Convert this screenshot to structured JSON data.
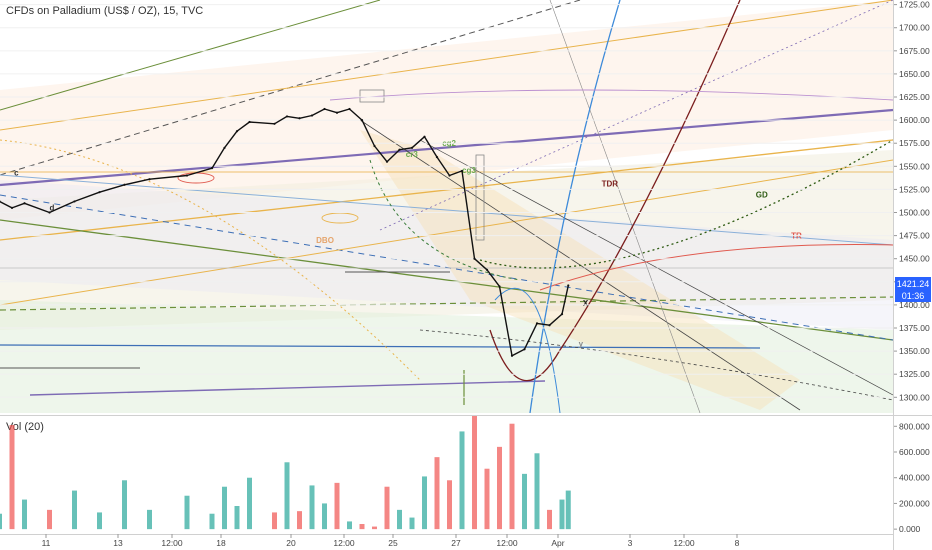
{
  "header": {
    "symbol_title": "CFDs on Palladium (US$ / OZ), 15, TVC"
  },
  "volume_label": "Vol (20)",
  "price_badges": {
    "last_price": "1421.24",
    "countdown": "01:36",
    "color": "#2962ff"
  },
  "annotations": [
    {
      "text": "TDR",
      "color": "#7b1e1e",
      "x": "Apr 2 14:00",
      "y": 1528
    },
    {
      "text": "GD",
      "color": "#2e5b13",
      "x": "Apr 8 18:00",
      "y": 1516
    },
    {
      "text": "TR",
      "color": "#e05a4f",
      "x": "Apr 10 04:00",
      "y": 1472
    },
    {
      "text": "DBO",
      "color": "#e5a46b",
      "x": "Mar 22 04:00",
      "y": 1467
    },
    {
      "text": "cg2",
      "color": "#6aa84f",
      "x": "Mar 27 05:00",
      "y": 1572
    },
    {
      "text": "cg3",
      "color": "#6aa84f",
      "x": "Mar 28 00:00",
      "y": 1543
    },
    {
      "text": "cr3",
      "color": "#6aa84f",
      "x": "Mar 25 18:00",
      "y": 1560
    },
    {
      "text": "X",
      "color": "#222222",
      "x": "Apr 1 20:00",
      "y": 1399
    },
    {
      "text": "y",
      "color": "#888888",
      "x": "Apr 1 16:00",
      "y": 1355
    },
    {
      "text": "c",
      "color": "#333333",
      "x": "Mar 10 02:00",
      "y": 1540
    },
    {
      "text": "d",
      "color": "#333333",
      "x": "Mar 11 12:00",
      "y": 1502
    }
  ],
  "chart_data": [
    {
      "type": "line",
      "name": "price",
      "xlabel": "",
      "ylabel": "",
      "x_ticks": [
        "11",
        "13",
        "12:00",
        "18",
        "20",
        "12:00",
        "25",
        "27",
        "12:00",
        "Apr",
        "3",
        "12:00",
        "8"
      ],
      "y_ticks": [
        1300,
        1325,
        1350,
        1375,
        1400,
        1425,
        1450,
        1475,
        1500,
        1525,
        1550,
        1575,
        1600,
        1625,
        1650,
        1675,
        1700,
        1725
      ],
      "ylim": [
        1283,
        1730
      ],
      "x": [
        "Mar 9 12:00",
        "Mar 10 00:00",
        "Mar 10 12:00",
        "Mar 11 12:00",
        "Mar 12 12:00",
        "Mar 13 12:00",
        "Mar 14 12:00",
        "Mar 15 12:00",
        "Mar 17 00:00",
        "Mar 18 00:00",
        "Mar 18 12:00",
        "Mar 19 00:00",
        "Mar 19 12:00",
        "Mar 20 12:00",
        "Mar 21 00:00",
        "Mar 21 12:00",
        "Mar 22 00:00",
        "Mar 22 12:00",
        "Mar 23 00:00",
        "Mar 23 12:00",
        "Mar 24 00:00",
        "Mar 24 12:00",
        "Mar 25 00:00",
        "Mar 25 12:00",
        "Mar 26 00:00",
        "Mar 26 12:00",
        "Mar 27 00:00",
        "Mar 27 12:00",
        "Mar 28 00:00",
        "Mar 28 12:00",
        "Mar 29 00:00",
        "Mar 29 12:00",
        "Mar 30 00:00",
        "Mar 30 12:00",
        "Mar 31 00:00",
        "Mar 31 12:00",
        "Apr 1 00:00",
        "Apr 1 06:00"
      ],
      "values": [
        1512,
        1505,
        1510,
        1500,
        1512,
        1522,
        1530,
        1536,
        1540,
        1548,
        1570,
        1588,
        1598,
        1596,
        1604,
        1602,
        1605,
        1612,
        1608,
        1612,
        1600,
        1572,
        1555,
        1568,
        1570,
        1582,
        1560,
        1540,
        1545,
        1450,
        1438,
        1420,
        1345,
        1352,
        1380,
        1378,
        1390,
        1421
      ]
    },
    {
      "type": "bar",
      "name": "volume",
      "y_ticks": [
        0,
        200000,
        400000,
        600000,
        800000
      ],
      "y_tick_labels": [
        "0.000",
        "200.000",
        "400.000",
        "600.000",
        "800.000"
      ],
      "ylim": [
        -30000,
        880000
      ],
      "x": [
        "Mar 9 12:00",
        "Mar 10 00:00",
        "Mar 10 12:00",
        "Mar 11 12:00",
        "Mar 12 12:00",
        "Mar 13 12:00",
        "Mar 14 12:00",
        "Mar 15 12:00",
        "Mar 17 00:00",
        "Mar 18 00:00",
        "Mar 18 12:00",
        "Mar 19 00:00",
        "Mar 19 12:00",
        "Mar 20 12:00",
        "Mar 21 00:00",
        "Mar 21 12:00",
        "Mar 22 00:00",
        "Mar 22 12:00",
        "Mar 23 00:00",
        "Mar 23 12:00",
        "Mar 24 00:00",
        "Mar 24 12:00",
        "Mar 25 00:00",
        "Mar 25 12:00",
        "Mar 26 00:00",
        "Mar 26 12:00",
        "Mar 27 00:00",
        "Mar 27 12:00",
        "Mar 28 00:00",
        "Mar 28 12:00",
        "Mar 29 00:00",
        "Mar 29 12:00",
        "Mar 30 00:00",
        "Mar 30 12:00",
        "Mar 31 00:00",
        "Mar 31 12:00",
        "Apr 1 00:00",
        "Apr 1 06:00"
      ],
      "values": [
        120000,
        810000,
        230000,
        150000,
        300000,
        130000,
        380000,
        150000,
        260000,
        120000,
        330000,
        180000,
        400000,
        130000,
        520000,
        140000,
        340000,
        200000,
        360000,
        60000,
        40000,
        20000,
        330000,
        150000,
        90000,
        410000,
        560000,
        380000,
        760000,
        880000,
        470000,
        640000,
        820000,
        430000,
        590000,
        150000,
        230000,
        300000
      ]
    }
  ],
  "colors": {
    "up": "#26a69a",
    "down": "#ef5350",
    "price_line": "#111111",
    "axis_text": "#444444"
  }
}
